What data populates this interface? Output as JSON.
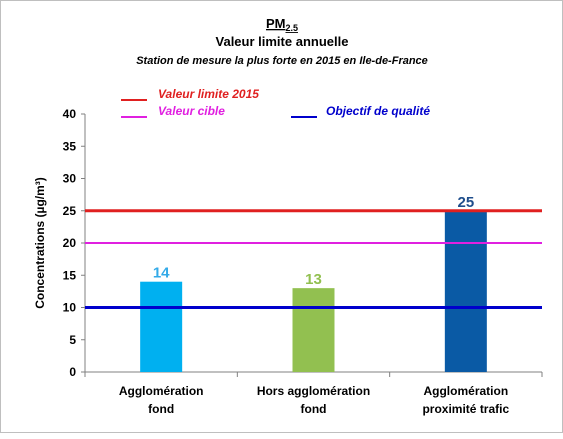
{
  "chart_data": {
    "type": "bar",
    "title": {
      "main": "PM",
      "main_sub": "2.5",
      "line2": "Valeur limite annuelle",
      "line3": "Station de mesure la plus forte en 2015 en Ile-de-France"
    },
    "ylabel": "Concentrations (µg/m³)",
    "ylim": [
      0,
      40
    ],
    "yticks": [
      0,
      5,
      10,
      15,
      20,
      25,
      30,
      35,
      40
    ],
    "categories": [
      {
        "line1": "Agglomération",
        "line2": "fond"
      },
      {
        "line1": "Hors agglomération",
        "line2": "fond"
      },
      {
        "line1": "Agglomération",
        "line2": "proximité trafic"
      }
    ],
    "values": [
      14,
      13,
      25
    ],
    "bar_colors": [
      "#00b0f0",
      "#92c050",
      "#0a5aa5"
    ],
    "data_label_colors": [
      "#33aae8",
      "#92c050",
      "#1f4e8c"
    ],
    "reference_lines": [
      {
        "name": "Valeur limite 2015",
        "value": 25,
        "color": "#e02020"
      },
      {
        "name": "Valeur cible",
        "value": 20,
        "color": "#e020e0"
      },
      {
        "name": "Objectif de qualité",
        "value": 10,
        "color": "#0000cc"
      }
    ],
    "grid": false,
    "legend_position": "top-left"
  }
}
